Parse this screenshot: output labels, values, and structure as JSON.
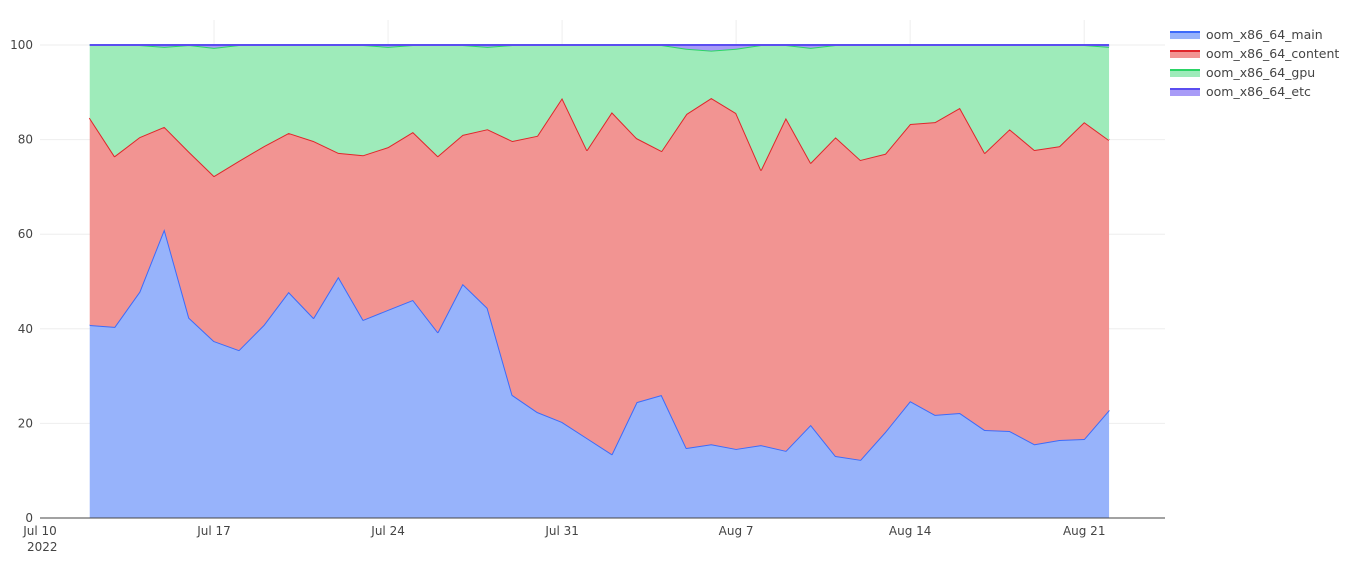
{
  "chart_data": {
    "type": "area",
    "stacked": true,
    "title": "",
    "xlabel": "",
    "ylabel": "",
    "ylim": [
      0,
      100
    ],
    "xlim": [
      "2022-07-10",
      "2022-08-24"
    ],
    "grid": true,
    "legend_position": "right",
    "x_ticks": [
      {
        "date": "2022-07-10",
        "label": "Jul 10",
        "sub": "2022"
      },
      {
        "date": "2022-07-17",
        "label": "Jul 17"
      },
      {
        "date": "2022-07-24",
        "label": "Jul 24"
      },
      {
        "date": "2022-07-31",
        "label": "Jul 31"
      },
      {
        "date": "2022-08-07",
        "label": "Aug 7"
      },
      {
        "date": "2022-08-14",
        "label": "Aug 14"
      },
      {
        "date": "2022-08-21",
        "label": "Aug 21"
      }
    ],
    "y_ticks": [
      0,
      20,
      40,
      60,
      80,
      100
    ],
    "x": [
      "2022-07-12",
      "2022-07-13",
      "2022-07-14",
      "2022-07-15",
      "2022-07-16",
      "2022-07-17",
      "2022-07-18",
      "2022-07-19",
      "2022-07-20",
      "2022-07-21",
      "2022-07-22",
      "2022-07-23",
      "2022-07-24",
      "2022-07-25",
      "2022-07-26",
      "2022-07-27",
      "2022-07-28",
      "2022-07-29",
      "2022-07-30",
      "2022-07-31",
      "2022-08-01",
      "2022-08-02",
      "2022-08-03",
      "2022-08-04",
      "2022-08-05",
      "2022-08-06",
      "2022-08-07",
      "2022-08-08",
      "2022-08-09",
      "2022-08-10",
      "2022-08-11",
      "2022-08-12",
      "2022-08-13",
      "2022-08-14",
      "2022-08-15",
      "2022-08-16",
      "2022-08-17",
      "2022-08-18",
      "2022-08-19",
      "2022-08-20",
      "2022-08-21",
      "2022-08-22"
    ],
    "series": [
      {
        "name": "oom_x86_64_main",
        "line_color": "#3d6bfa",
        "fill_color": "#97b3fb",
        "values": [
          40.8,
          40.4,
          47.8,
          61.1,
          42.3,
          37.4,
          35.5,
          40.8,
          47.8,
          42.3,
          51.0,
          41.9,
          44.0,
          46.1,
          39.3,
          49.5,
          44.4,
          26.0,
          22.4,
          20.3,
          16.9,
          13.5,
          24.5,
          26.0,
          14.8,
          15.6,
          14.6,
          15.4,
          14.2,
          19.7,
          13.1,
          12.3,
          18.2,
          24.7,
          21.8,
          22.2,
          18.6,
          18.4,
          15.6,
          16.5,
          16.7,
          22.8
        ]
      },
      {
        "name": "oom_x86_64_content",
        "line_color": "#e0262b",
        "fill_color": "#f29492",
        "values": [
          43.8,
          36.1,
          32.7,
          21.6,
          35.1,
          34.9,
          40.0,
          37.8,
          33.6,
          37.4,
          26.2,
          34.8,
          34.4,
          35.5,
          37.2,
          31.5,
          37.8,
          53.7,
          58.4,
          68.5,
          60.9,
          72.3,
          55.8,
          51.6,
          70.6,
          73.2,
          71.0,
          58.2,
          70.4,
          55.4,
          67.4,
          63.4,
          58.8,
          58.6,
          61.9,
          64.5,
          58.6,
          63.8,
          62.2,
          62.1,
          67.0,
          57.1
        ]
      },
      {
        "name": "oom_x86_64_gpu",
        "line_color": "#2bd466",
        "fill_color": "#9eebba",
        "values": [
          15.4,
          23.5,
          19.5,
          16.9,
          22.6,
          27.1,
          24.5,
          21.4,
          18.6,
          20.3,
          22.8,
          23.3,
          21.2,
          18.4,
          23.5,
          19.0,
          17.4,
          20.3,
          19.2,
          11.2,
          22.2,
          14.2,
          19.7,
          22.4,
          13.8,
          10.0,
          13.6,
          26.4,
          15.4,
          24.3,
          19.5,
          24.3,
          23.0,
          16.7,
          16.3,
          13.3,
          22.8,
          17.8,
          22.2,
          21.4,
          16.3,
          19.7
        ]
      },
      {
        "name": "oom_x86_64_etc",
        "line_color": "#5b4ef0",
        "fill_color": "#a89bf7",
        "values": [
          0,
          0,
          0,
          0.4,
          0,
          0.6,
          0,
          0,
          0,
          0,
          0,
          0,
          0.4,
          0,
          0,
          0,
          0.4,
          0,
          0,
          0,
          0,
          0,
          0,
          0,
          0.8,
          1.2,
          0.8,
          0,
          0,
          0.6,
          0,
          0,
          0,
          0,
          0,
          0,
          0,
          0,
          0,
          0,
          0,
          0.4
        ]
      }
    ]
  }
}
